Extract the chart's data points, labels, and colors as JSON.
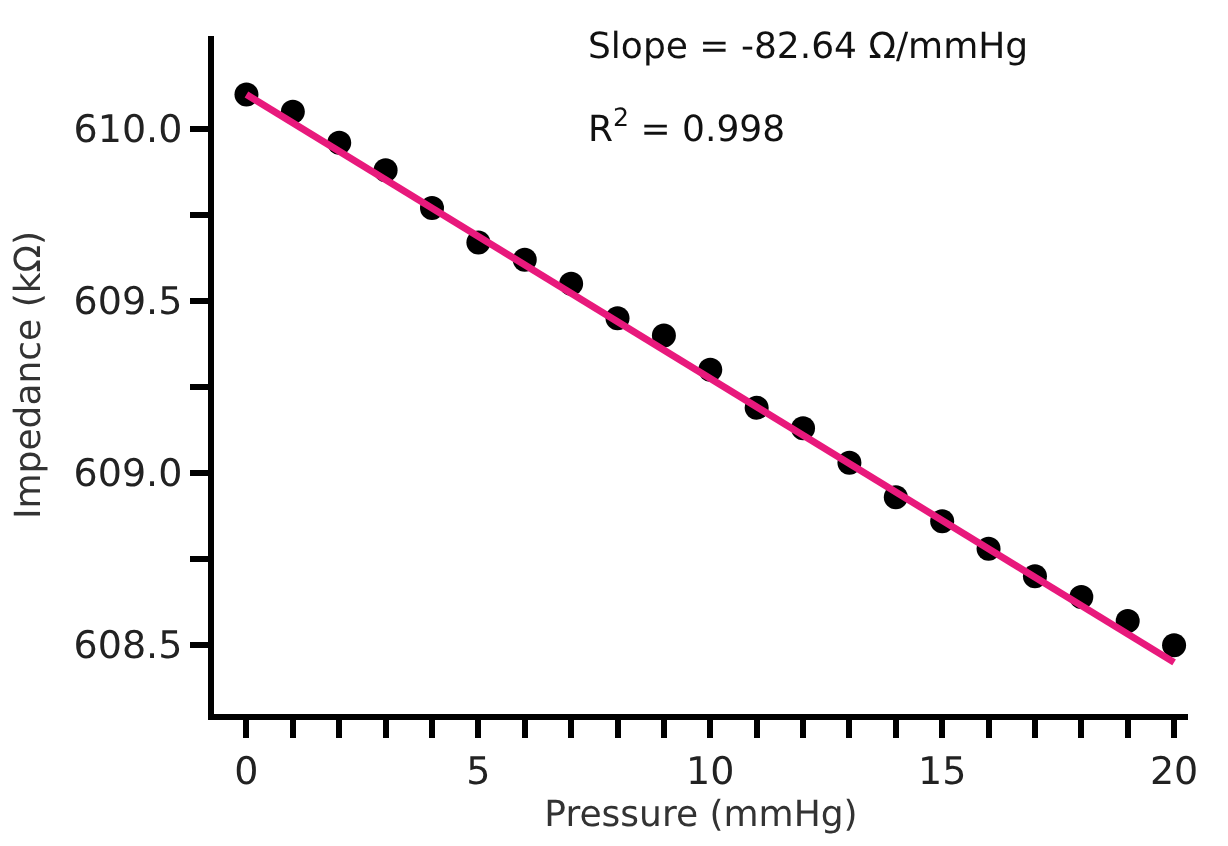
{
  "chart_data": {
    "type": "scatter",
    "xlabel": "Pressure (mmHg)",
    "ylabel": "Impedance (kΩ)",
    "annotations": [
      "Slope = -82.64 Ω/mmHg",
      "R$^{2}$ = 0.998"
    ],
    "xlim": [
      -0.7,
      20.3
    ],
    "ylim": [
      608.3,
      610.27
    ],
    "xticks": [
      0,
      {
        "value": 1,
        "label": null
      },
      {
        "value": 2,
        "label": null
      },
      {
        "value": 3,
        "label": null
      },
      {
        "value": 4,
        "label": null
      },
      5,
      {
        "value": 6,
        "label": null
      },
      {
        "value": 7,
        "label": null
      },
      {
        "value": 8,
        "label": null
      },
      {
        "value": 9,
        "label": null
      },
      10,
      {
        "value": 11,
        "label": null
      },
      {
        "value": 12,
        "label": null
      },
      {
        "value": 13,
        "label": null
      },
      {
        "value": 14,
        "label": null
      },
      15,
      {
        "value": 16,
        "label": null
      },
      {
        "value": 17,
        "label": null
      },
      {
        "value": 18,
        "label": null
      },
      {
        "value": 19,
        "label": null
      },
      20
    ],
    "yticks": [
      {
        "value": 608.5,
        "label": "608.5"
      },
      {
        "value": 608.75,
        "label": null
      },
      {
        "value": 609.0,
        "label": "609.0"
      },
      {
        "value": 609.25,
        "label": null
      },
      {
        "value": 609.5,
        "label": "609.5"
      },
      {
        "value": 609.75,
        "label": null
      },
      {
        "value": 610.0,
        "label": "610.0"
      }
    ],
    "grid": false,
    "legend": false,
    "series": [
      {
        "marker": "circle",
        "color": "#000000",
        "x": [
          0,
          1,
          2,
          3,
          4,
          5,
          6,
          7,
          8,
          9,
          10,
          11,
          12,
          13,
          14,
          15,
          16,
          17,
          18,
          19,
          20
        ],
        "values": [
          610.1,
          610.05,
          609.96,
          609.88,
          609.77,
          609.67,
          609.62,
          609.55,
          609.45,
          609.4,
          609.3,
          609.19,
          609.13,
          609.03,
          608.93,
          608.86,
          608.78,
          608.7,
          608.64,
          608.57,
          608.5
        ]
      },
      {
        "type": "line",
        "marker": "none",
        "color": "#e8197c",
        "x": [
          0,
          20
        ],
        "values": [
          610.1,
          608.45
        ]
      }
    ]
  }
}
